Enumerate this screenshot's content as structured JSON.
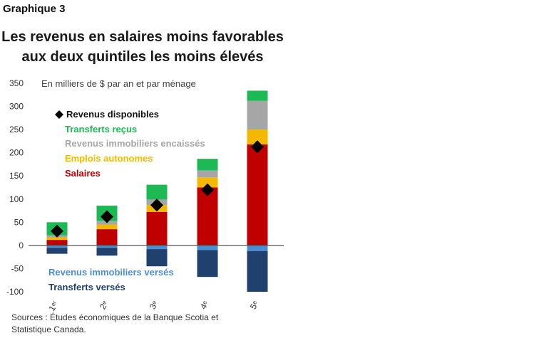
{
  "header": {
    "graph_label": "Graphique 3",
    "title_line1": "Les revenus en salaires moins favorables",
    "title_line2": "aux deux quintiles les moins élevés"
  },
  "source": {
    "line1": "Sources : Études économiques de la Banque Scotia et",
    "line2": "Statistique Canada."
  },
  "chart_data": {
    "type": "bar",
    "stacked": true,
    "unit_label": "En milliers de $ par an et par ménage",
    "categories": [
      "1ᵉʳ",
      "2ᵉ",
      "3ᵉ",
      "4ᵉ",
      "5ᵉ"
    ],
    "ylim": [
      -100,
      350
    ],
    "yticks": [
      350,
      300,
      250,
      200,
      150,
      100,
      50,
      0,
      -50,
      -100
    ],
    "grid": false,
    "legend_placement": "inside-left",
    "series": [
      {
        "name": "Salaires",
        "color": "#c00000",
        "values": [
          12,
          35,
          72,
          125,
          218
        ]
      },
      {
        "name": "Emplois autonomes",
        "color": "#f5b800",
        "values": [
          5,
          10,
          15,
          22,
          32
        ]
      },
      {
        "name": "Revenus immobiliers encaissés",
        "color": "#a6a6a6",
        "values": [
          5,
          8,
          12,
          15,
          62
        ]
      },
      {
        "name": "Transferts reçus",
        "color": "#1db954",
        "values": [
          28,
          33,
          32,
          25,
          22
        ]
      },
      {
        "name": "Revenus immobiliers versés",
        "color": "#4a8fd6",
        "values": [
          -5,
          -5,
          -8,
          -10,
          -12
        ]
      },
      {
        "name": "Transferts versés",
        "color": "#20406e",
        "values": [
          -13,
          -17,
          -37,
          -58,
          -88
        ]
      }
    ],
    "markers": {
      "name": "Revenus disponibles",
      "color": "#000000",
      "values": [
        31,
        62,
        87,
        120,
        213
      ]
    },
    "legend_top": [
      "Revenus disponibles",
      "Transferts reçus",
      "Revenus immobiliers encaissés",
      "Emplois autonomes",
      "Salaires"
    ],
    "legend_bottom": [
      "Revenus immobiliers versés",
      "Transferts versés"
    ]
  }
}
